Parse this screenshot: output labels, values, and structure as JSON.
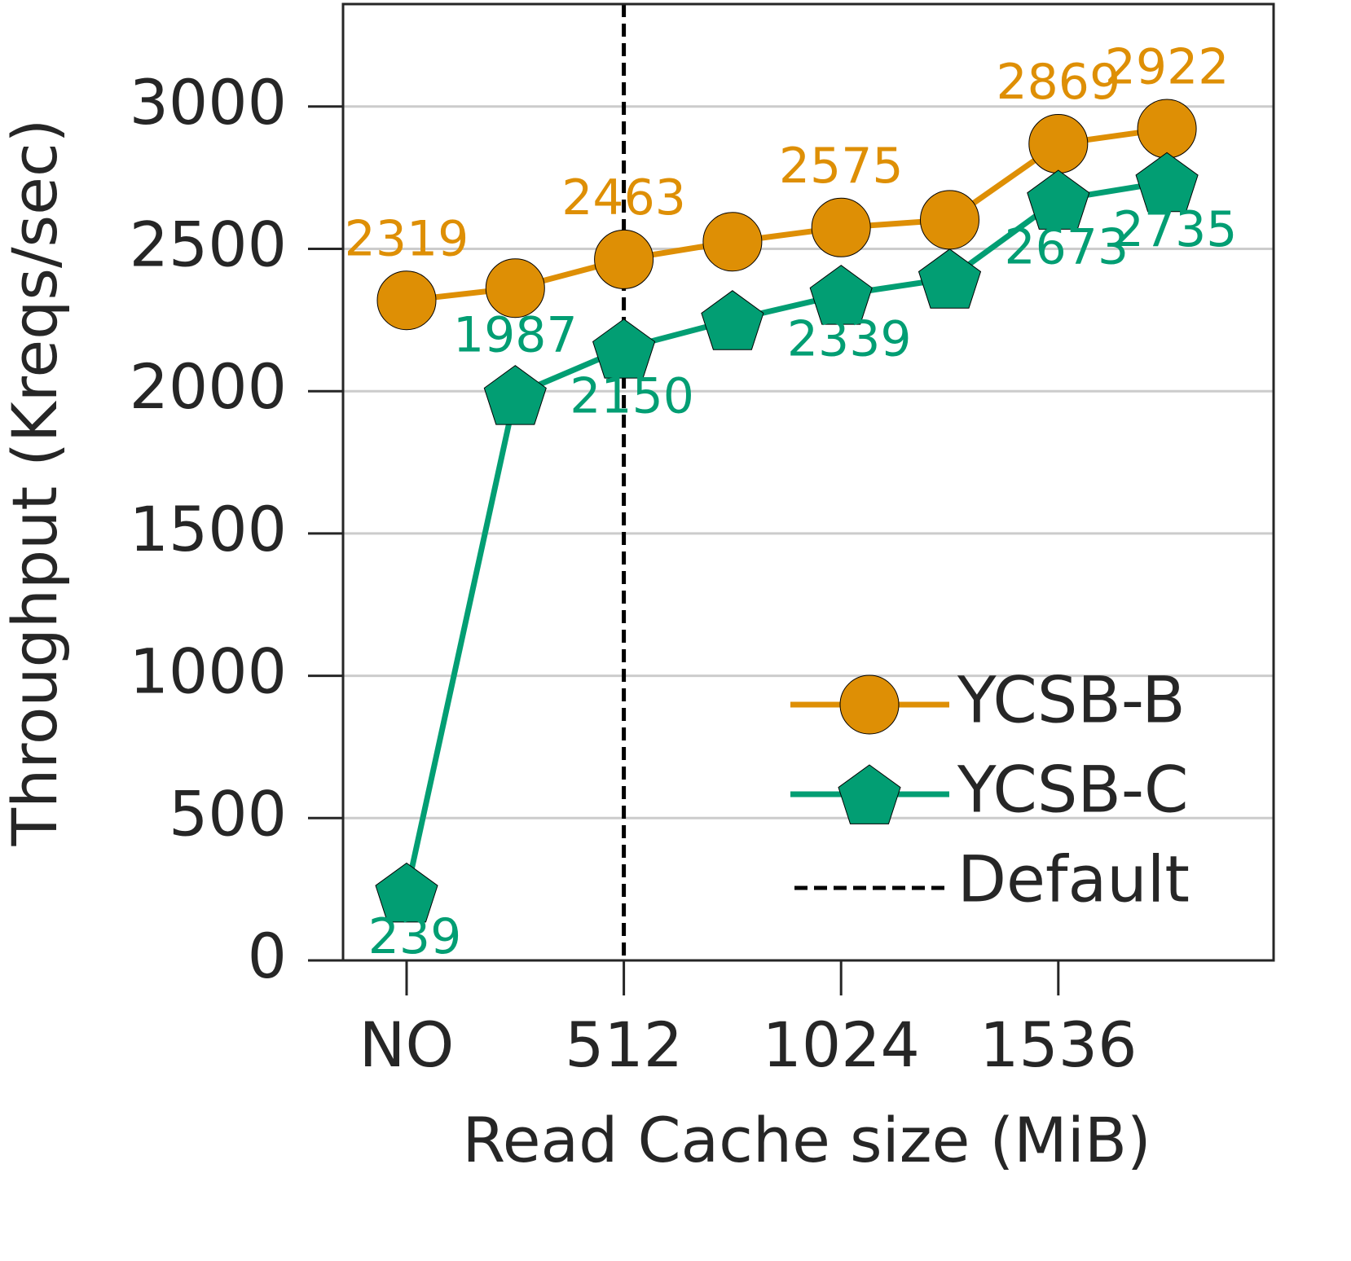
{
  "chart_data": {
    "type": "line",
    "x_label": "Read Cache size (MiB)",
    "y_label": "Throughput (Kreqs/sec)",
    "categories": [
      "NO",
      null,
      "512",
      null,
      "1024",
      null,
      "1536",
      null
    ],
    "series": [
      {
        "name": "YCSB-B",
        "color": "#de8f05",
        "marker": "circle",
        "values": [
          2319,
          2362,
          2463,
          2525,
          2575,
          2602,
          2869,
          2922
        ],
        "value_labels": [
          "2319",
          null,
          "2463",
          null,
          "2575",
          null,
          "2869",
          "2922"
        ]
      },
      {
        "name": "YCSB-C",
        "color": "#029e73",
        "marker": "pentagon",
        "values": [
          239,
          1987,
          2150,
          2250,
          2339,
          2396,
          2673,
          2735
        ],
        "value_labels": [
          "239",
          "1987",
          "2150",
          null,
          "2339",
          null,
          "2673",
          "2735"
        ]
      }
    ],
    "vlines": [
      {
        "x": "512",
        "name": "Default",
        "color": "#000000",
        "style": "dashed"
      }
    ],
    "ylim": [
      0,
      3360
    ],
    "yticks": [
      0,
      500,
      1000,
      1500,
      2000,
      2500,
      3000
    ],
    "grid": true,
    "legend": "lower right"
  }
}
